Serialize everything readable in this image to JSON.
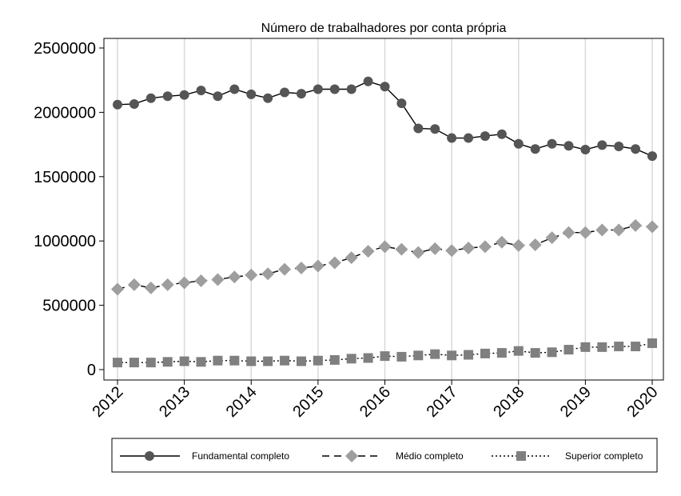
{
  "chart_data": {
    "type": "line",
    "title": "Número de trabalhadores por conta própria",
    "xlabel": "",
    "ylabel": "",
    "xlim": [
      2012,
      2020
    ],
    "ylim": [
      0,
      2500000
    ],
    "x_ticks": [
      "2012",
      "2013",
      "2014",
      "2015",
      "2016",
      "2017",
      "2018",
      "2019",
      "2020"
    ],
    "y_ticks": [
      "0",
      "500000",
      "1000000",
      "1500000",
      "2000000",
      "2500000"
    ],
    "grid": "vertical",
    "legend_position": "bottom",
    "x": [
      2012.0,
      2012.25,
      2012.5,
      2012.75,
      2013.0,
      2013.25,
      2013.5,
      2013.75,
      2014.0,
      2014.25,
      2014.5,
      2014.75,
      2015.0,
      2015.25,
      2015.5,
      2015.75,
      2016.0,
      2016.25,
      2016.5,
      2016.75,
      2017.0,
      2017.25,
      2017.5,
      2017.75,
      2018.0,
      2018.25,
      2018.5,
      2018.75,
      2019.0,
      2019.25,
      2019.5,
      2019.75,
      2020.0
    ],
    "series": [
      {
        "name": "Fundamental completo",
        "color": "#555555",
        "marker": "circle",
        "line": "solid",
        "values": [
          2060000,
          2065000,
          2110000,
          2125000,
          2135000,
          2170000,
          2125000,
          2180000,
          2140000,
          2110000,
          2155000,
          2145000,
          2180000,
          2180000,
          2180000,
          2240000,
          2200000,
          2070000,
          1875000,
          1870000,
          1800000,
          1800000,
          1815000,
          1830000,
          1755000,
          1715000,
          1755000,
          1740000,
          1710000,
          1745000,
          1735000,
          1715000,
          1660000
        ]
      },
      {
        "name": "Médio completo",
        "color": "#9e9e9e",
        "marker": "diamond",
        "line": "dash",
        "values": [
          625000,
          660000,
          635000,
          660000,
          675000,
          690000,
          700000,
          720000,
          735000,
          745000,
          780000,
          790000,
          805000,
          830000,
          870000,
          920000,
          955000,
          935000,
          910000,
          940000,
          925000,
          945000,
          955000,
          990000,
          965000,
          970000,
          1025000,
          1065000,
          1065000,
          1085000,
          1085000,
          1120000,
          1110000
        ]
      },
      {
        "name": "Superior completo",
        "color": "#7f7f7f",
        "marker": "square",
        "line": "dot",
        "values": [
          55000,
          55000,
          55000,
          60000,
          65000,
          60000,
          70000,
          70000,
          65000,
          65000,
          70000,
          65000,
          70000,
          75000,
          85000,
          90000,
          105000,
          100000,
          110000,
          120000,
          110000,
          115000,
          125000,
          130000,
          145000,
          130000,
          135000,
          155000,
          175000,
          175000,
          180000,
          180000,
          205000
        ]
      }
    ]
  }
}
